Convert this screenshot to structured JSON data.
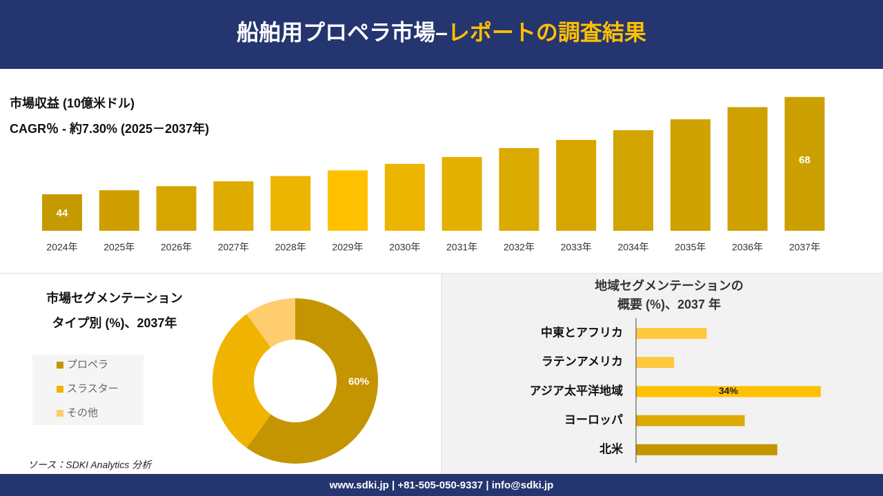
{
  "header": {
    "title_main": "船舶用プロペラ市場–",
    "title_accent": "レポートの調査結果"
  },
  "footer": {
    "contact": "www.sdki.jp | +81-505-050-9337 | info@sdki.jp"
  },
  "source": "ソース：SDKI Analytics 分析",
  "chart_data": [
    {
      "type": "bar",
      "title": "市場収益 (10億米ドル)",
      "subtitle": "CAGR％ - 約7.30% (2025－2037年)",
      "categories": [
        "2024年",
        "2025年",
        "2026年",
        "2027年",
        "2028年",
        "2029年",
        "2030年",
        "2031年",
        "2032年",
        "2033年",
        "2034年",
        "2035年",
        "2036年",
        "2037年"
      ],
      "values": [
        44,
        45,
        46,
        47.2,
        48.5,
        49.9,
        51.5,
        53.2,
        55.4,
        57.4,
        59.8,
        62.5,
        65.5,
        68
      ],
      "value_labels": [
        "44",
        null,
        null,
        null,
        null,
        null,
        null,
        null,
        null,
        null,
        null,
        null,
        null,
        "68"
      ],
      "colors": [
        "#c49a00",
        "#cf9f00",
        "#d6a600",
        "#e0ac00",
        "#ecb500",
        "#ffc000",
        "#ecb500",
        "#e4b000",
        "#dcab00",
        "#d6a600",
        "#d2a400",
        "#d0a200",
        "#cea100",
        "#cca000"
      ],
      "ylim": [
        35,
        70
      ]
    },
    {
      "type": "donut",
      "title": "市場セグメンテーション",
      "subtitle": "タイプ別 (%)、2037年",
      "categories": [
        "プロペラ",
        "スラスター",
        "その他"
      ],
      "values": [
        60,
        30,
        10
      ],
      "value_labels": [
        "60%",
        null,
        null
      ],
      "colors": [
        "#c49500",
        "#f0b400",
        "#ffcc6e"
      ]
    },
    {
      "type": "hbar",
      "title": "地域セグメンテーションの",
      "subtitle": "概要 (%)、2037 年",
      "categories": [
        "中東とアフリカ",
        "ラテンアメリカ",
        "アジア太平洋地域",
        "ヨーロッパ",
        "北米"
      ],
      "values": [
        13,
        7,
        34,
        20,
        26
      ],
      "value_labels": [
        null,
        null,
        "34%",
        null,
        null
      ],
      "colors": [
        "#ffc83d",
        "#ffc83d",
        "#ffc000",
        "#dca900",
        "#c49500"
      ],
      "xlim": [
        0,
        40
      ]
    }
  ]
}
